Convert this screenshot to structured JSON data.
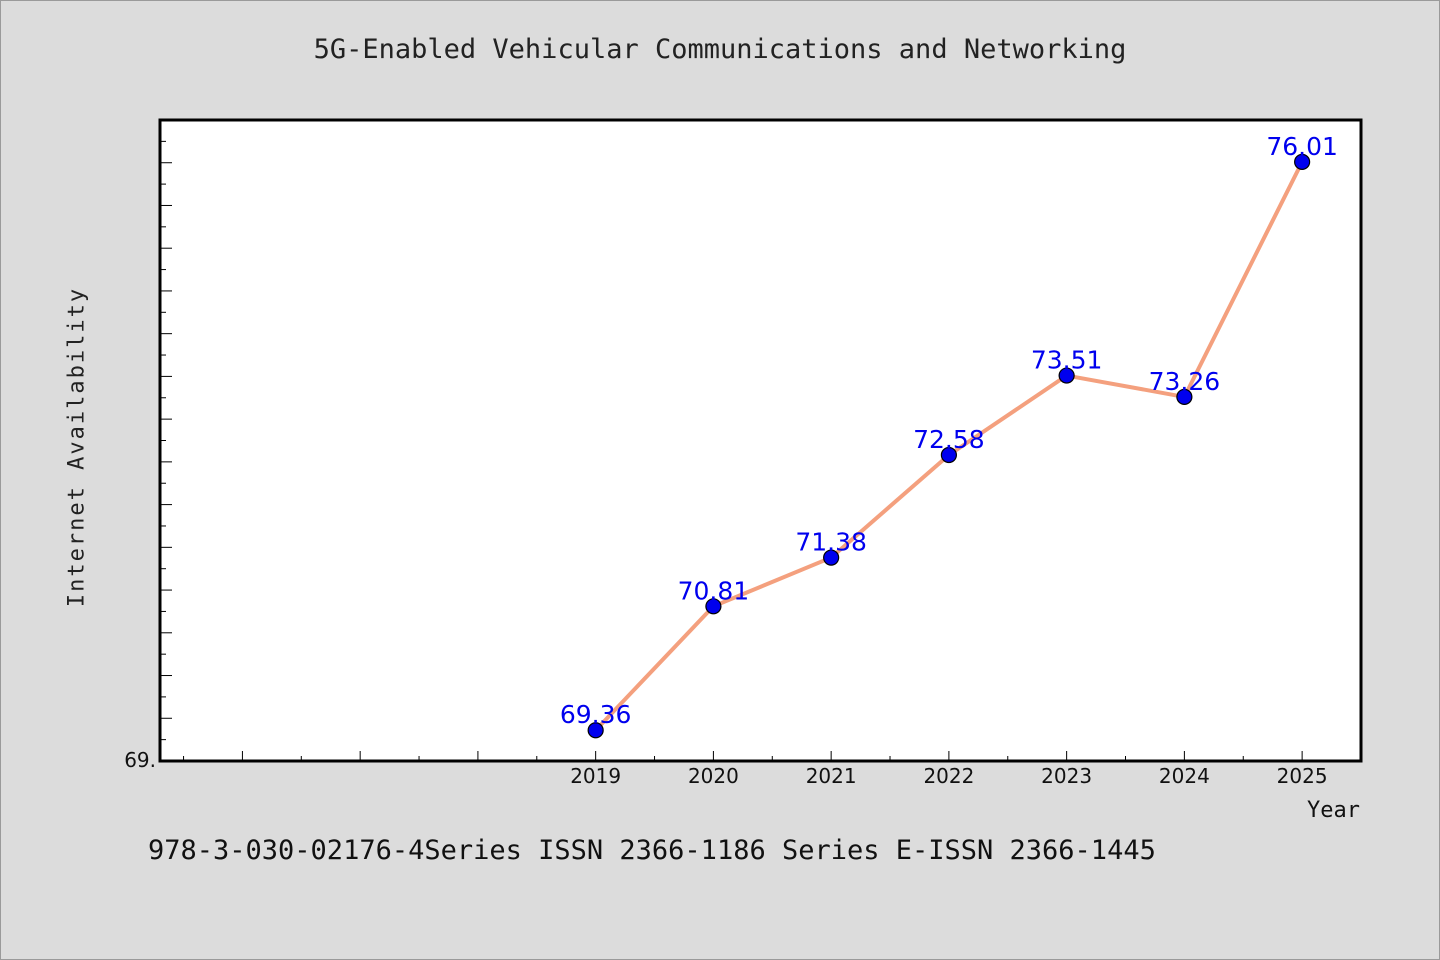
{
  "header": {
    "title": "5G-Enabled Vehicular Communications and Networking"
  },
  "footer": {
    "note": "978-3-030-02176-4Series ISSN 2366-1186 Series E-ISSN 2366-1445"
  },
  "chart_data": {
    "type": "line",
    "title": "5G-Enabled Vehicular Communications and Networking",
    "xlabel": "Year",
    "ylabel": "Internet Availability",
    "x": [
      2019,
      2020,
      2021,
      2022,
      2023,
      2024,
      2025
    ],
    "x_ticks": [
      "2019",
      "2020",
      "2021",
      "2022",
      "2023",
      "2024",
      "2025"
    ],
    "xlim": [
      2015.3,
      2025.5
    ],
    "ylim": [
      69.0,
      76.5
    ],
    "y_tick_labels": [
      "69."
    ],
    "series": [
      {
        "values": [
          69.36,
          70.81,
          71.38,
          72.58,
          73.51,
          73.26,
          76.01
        ],
        "labels": [
          "69.36",
          "70.81",
          "71.38",
          "72.58",
          "73.51",
          "73.26",
          "76.01"
        ]
      }
    ],
    "grid": false,
    "colors": {
      "line": "#f4a07e",
      "marker": "#0000ee",
      "data_label": "#0000ee",
      "plot_background": "#ffffff",
      "figure_background": "#dcdcdc"
    }
  }
}
